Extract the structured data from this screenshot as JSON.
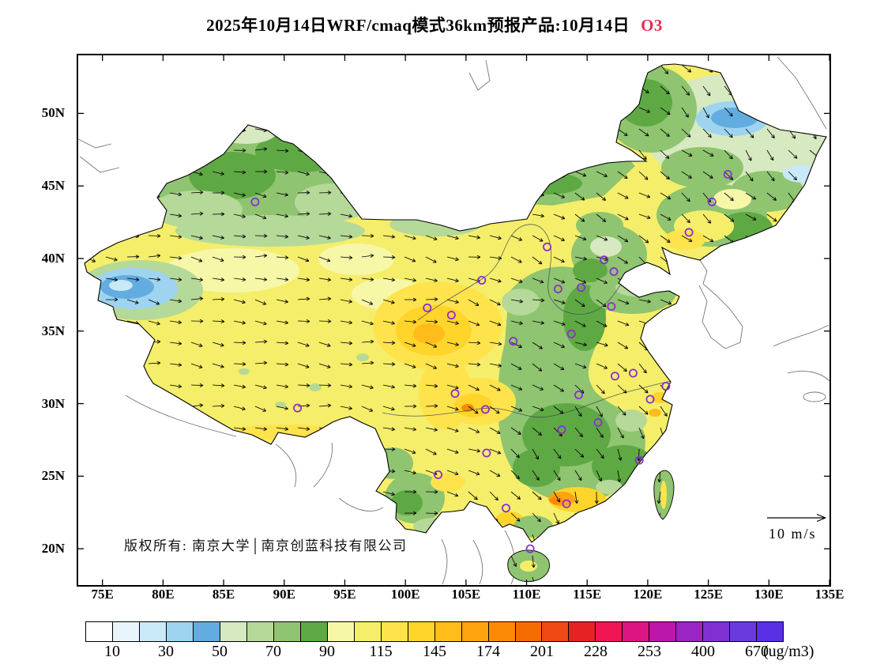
{
  "title": {
    "text": "2025年10月14日WRF/cmaq模式36km预报产品:10月14日",
    "species": "O3",
    "species_color": "#ee2b4e"
  },
  "map": {
    "extent": {
      "lon_min": 73,
      "lon_max": 135,
      "lat_min": 17.5,
      "lat_max": 54
    },
    "lat_ticks": [
      {
        "label": "50N",
        "lat": 50
      },
      {
        "label": "45N",
        "lat": 45
      },
      {
        "label": "40N",
        "lat": 40
      },
      {
        "label": "35N",
        "lat": 35
      },
      {
        "label": "30N",
        "lat": 30
      },
      {
        "label": "25N",
        "lat": 25
      },
      {
        "label": "20N",
        "lat": 20
      }
    ],
    "lon_ticks": [
      {
        "label": "75E",
        "lon": 75
      },
      {
        "label": "80E",
        "lon": 80
      },
      {
        "label": "85E",
        "lon": 85
      },
      {
        "label": "90E",
        "lon": 90
      },
      {
        "label": "95E",
        "lon": 95
      },
      {
        "label": "100E",
        "lon": 100
      },
      {
        "label": "105E",
        "lon": 105
      },
      {
        "label": "110E",
        "lon": 110
      },
      {
        "label": "115E",
        "lon": 115
      },
      {
        "label": "120E",
        "lon": 120
      },
      {
        "label": "125E",
        "lon": 125
      },
      {
        "label": "130E",
        "lon": 130
      },
      {
        "label": "135E",
        "lon": 135
      }
    ],
    "copyright": "版权所有: 南京大学│南京创蓝科技有限公司",
    "wind_scale_label": "10 m/s",
    "city_markers": [
      {
        "lon": 87.6,
        "lat": 43.9
      },
      {
        "lon": 126.6,
        "lat": 45.8
      },
      {
        "lon": 125.3,
        "lat": 43.9
      },
      {
        "lon": 123.4,
        "lat": 41.8
      },
      {
        "lon": 111.7,
        "lat": 40.8
      },
      {
        "lon": 116.4,
        "lat": 39.9
      },
      {
        "lon": 117.2,
        "lat": 39.1
      },
      {
        "lon": 114.5,
        "lat": 38.0
      },
      {
        "lon": 112.6,
        "lat": 37.9
      },
      {
        "lon": 106.3,
        "lat": 38.5
      },
      {
        "lon": 101.8,
        "lat": 36.6
      },
      {
        "lon": 103.8,
        "lat": 36.1
      },
      {
        "lon": 108.9,
        "lat": 34.3
      },
      {
        "lon": 113.7,
        "lat": 34.8
      },
      {
        "lon": 117.0,
        "lat": 36.7
      },
      {
        "lon": 118.8,
        "lat": 32.1
      },
      {
        "lon": 117.3,
        "lat": 31.9
      },
      {
        "lon": 121.5,
        "lat": 31.2
      },
      {
        "lon": 120.2,
        "lat": 30.3
      },
      {
        "lon": 114.3,
        "lat": 30.6
      },
      {
        "lon": 104.1,
        "lat": 30.7
      },
      {
        "lon": 106.6,
        "lat": 29.6
      },
      {
        "lon": 91.1,
        "lat": 29.7
      },
      {
        "lon": 112.9,
        "lat": 28.2
      },
      {
        "lon": 115.9,
        "lat": 28.7
      },
      {
        "lon": 106.7,
        "lat": 26.6
      },
      {
        "lon": 102.7,
        "lat": 25.1
      },
      {
        "lon": 119.3,
        "lat": 26.1
      },
      {
        "lon": 113.3,
        "lat": 23.1
      },
      {
        "lon": 108.3,
        "lat": 22.8
      },
      {
        "lon": 110.3,
        "lat": 20.0
      }
    ]
  },
  "colorbar": {
    "unit": "(ug/m3)",
    "tick_labels": [
      "10",
      "30",
      "50",
      "70",
      "90",
      "115",
      "145",
      "174",
      "201",
      "228",
      "253",
      "400",
      "670"
    ],
    "cell_colors": [
      "#ffffff",
      "#e8f5fc",
      "#c9e8f8",
      "#9fd4f0",
      "#62ace0",
      "#d6e9c0",
      "#b5d998",
      "#8fc470",
      "#5fa945",
      "#f7f7a8",
      "#f5ee6a",
      "#ffe34d",
      "#ffd42b",
      "#ffbc1a",
      "#ffa30f",
      "#fb8a07",
      "#f56d00",
      "#ef4a14",
      "#e62222",
      "#ef1653",
      "#dd1583",
      "#bb17ab",
      "#9a24c4",
      "#8030d2",
      "#6b3ade",
      "#5930e6"
    ]
  }
}
